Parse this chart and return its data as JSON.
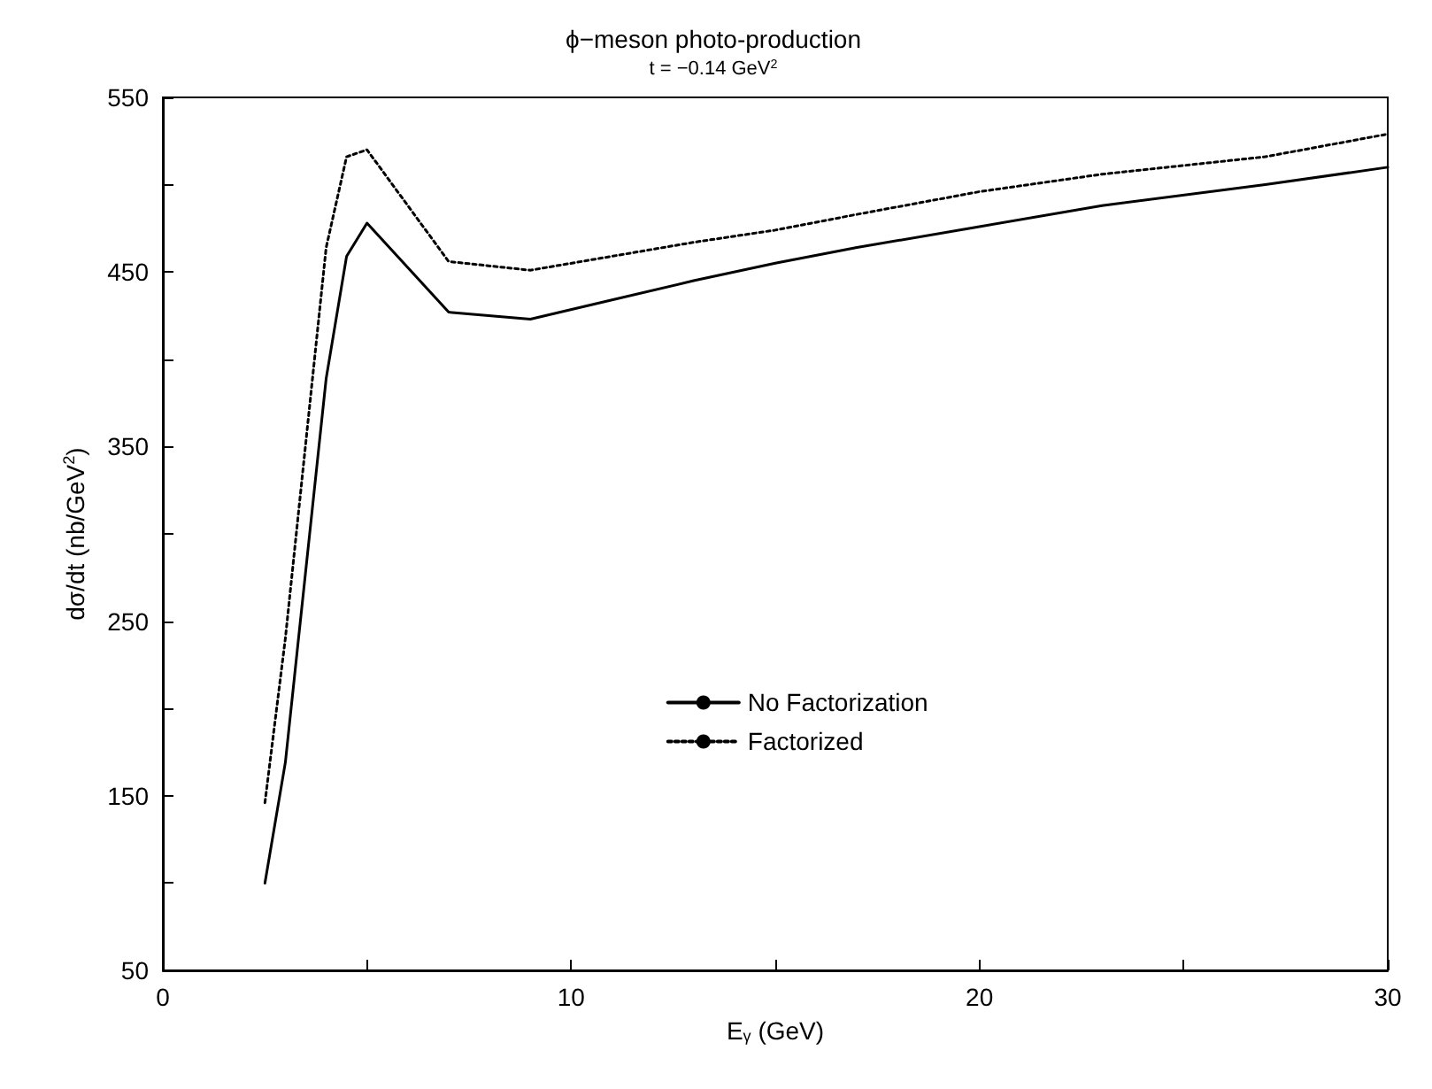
{
  "chart_data": {
    "type": "line",
    "title": "ϕ−meson photo-production",
    "subtitle": "t = −0.14 GeV$^{2}$",
    "xlabel": "E$_{γ}$ (GeV)",
    "ylabel": "dσ/dt (nb/GeV$^{2}$)",
    "x": [
      2.5,
      3,
      4,
      4.5,
      5,
      7,
      9,
      11,
      13,
      15,
      17,
      20,
      23,
      27,
      30
    ],
    "series": [
      {
        "name": "No Factorization",
        "color": "#000000",
        "line_style": "solid",
        "values": [
          100,
          169,
          389,
          459,
          478,
          427,
          423,
          434,
          445,
          455,
          464,
          476,
          488,
          500,
          510
        ]
      },
      {
        "name": "Factorized",
        "color": "#000000",
        "line_style": "dotted",
        "values": [
          146,
          240,
          464,
          516,
          520,
          456,
          451,
          459,
          467,
          474,
          483,
          496,
          506,
          516,
          529
        ]
      }
    ],
    "xlim": [
      0,
      30
    ],
    "xticks": [
      0,
      {
        "value": 5,
        "label": null
      },
      10,
      {
        "value": 15,
        "label": null
      },
      20,
      {
        "value": 25,
        "label": null
      },
      30
    ],
    "ylim": [
      50,
      550
    ],
    "yticks": [
      50,
      {
        "value": 100,
        "label": null
      },
      150,
      {
        "value": 200,
        "label": null
      },
      250,
      {
        "value": 300,
        "label": null
      },
      350,
      {
        "value": 400,
        "label": null
      },
      450,
      {
        "value": 500,
        "label": null
      },
      550
    ],
    "grid": false,
    "legend": "bottom",
    "marker": "none"
  }
}
